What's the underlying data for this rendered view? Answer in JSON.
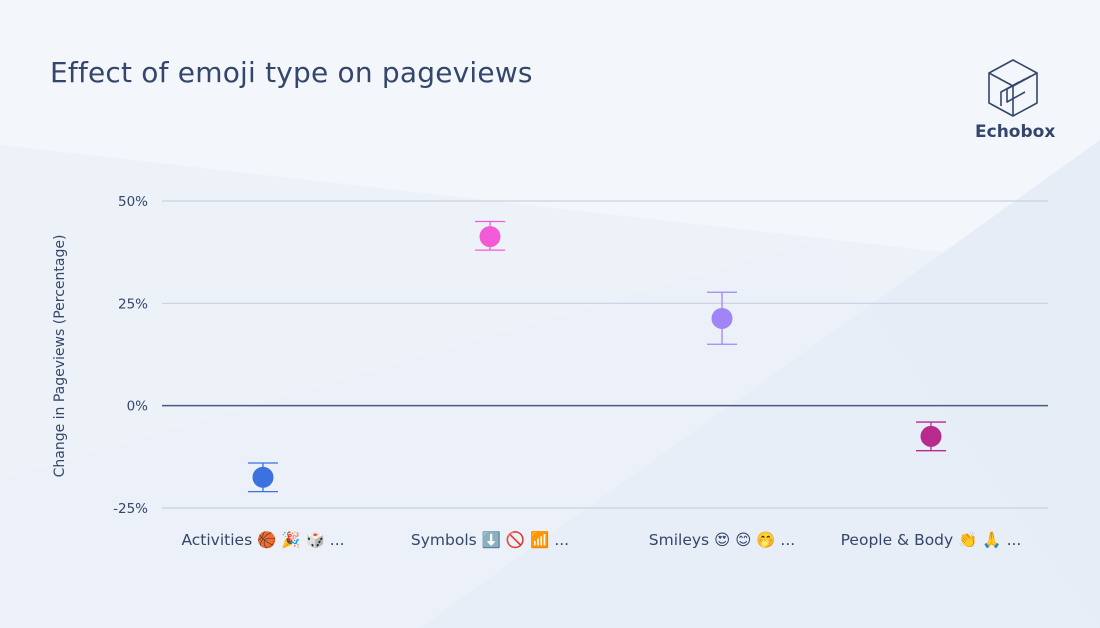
{
  "title": "Effect of emoji type on pageviews",
  "brand": {
    "name": "Echobox",
    "logo_icon": "echobox-cube-icon"
  },
  "colors": {
    "text": "#34476a",
    "grid": "#c9d1e1",
    "zero_line": "#4a5a7d",
    "background": "#f3f6fb"
  },
  "chart_data": {
    "type": "scatter",
    "title": "Effect of emoji type on pageviews",
    "xlabel": "",
    "ylabel": "Change in Pageviews (Percentage)",
    "ylim": [
      -25,
      50
    ],
    "yticks": [
      50,
      25,
      0,
      -25
    ],
    "ytick_labels": [
      "50%",
      "25%",
      "0%",
      "-25%"
    ],
    "grid": true,
    "legend": "none",
    "categories": [
      "Activities 🏀 🎉 🎲 ...",
      "Symbols ⬇️ 🚫 📶 ...",
      "Smileys 😍 😊 🤭 ...",
      "People & Body 👏 🙏 ..."
    ],
    "series": [
      {
        "values": [
          -17.5,
          41.3,
          21.3,
          -7.5
        ],
        "error_low": [
          -21,
          38,
          15,
          -11
        ],
        "error_high": [
          -14,
          45,
          27.7,
          -4
        ],
        "colors": [
          "#3b72e0",
          "#f45ad6",
          "#a184f5",
          "#b82a8d"
        ]
      }
    ]
  }
}
